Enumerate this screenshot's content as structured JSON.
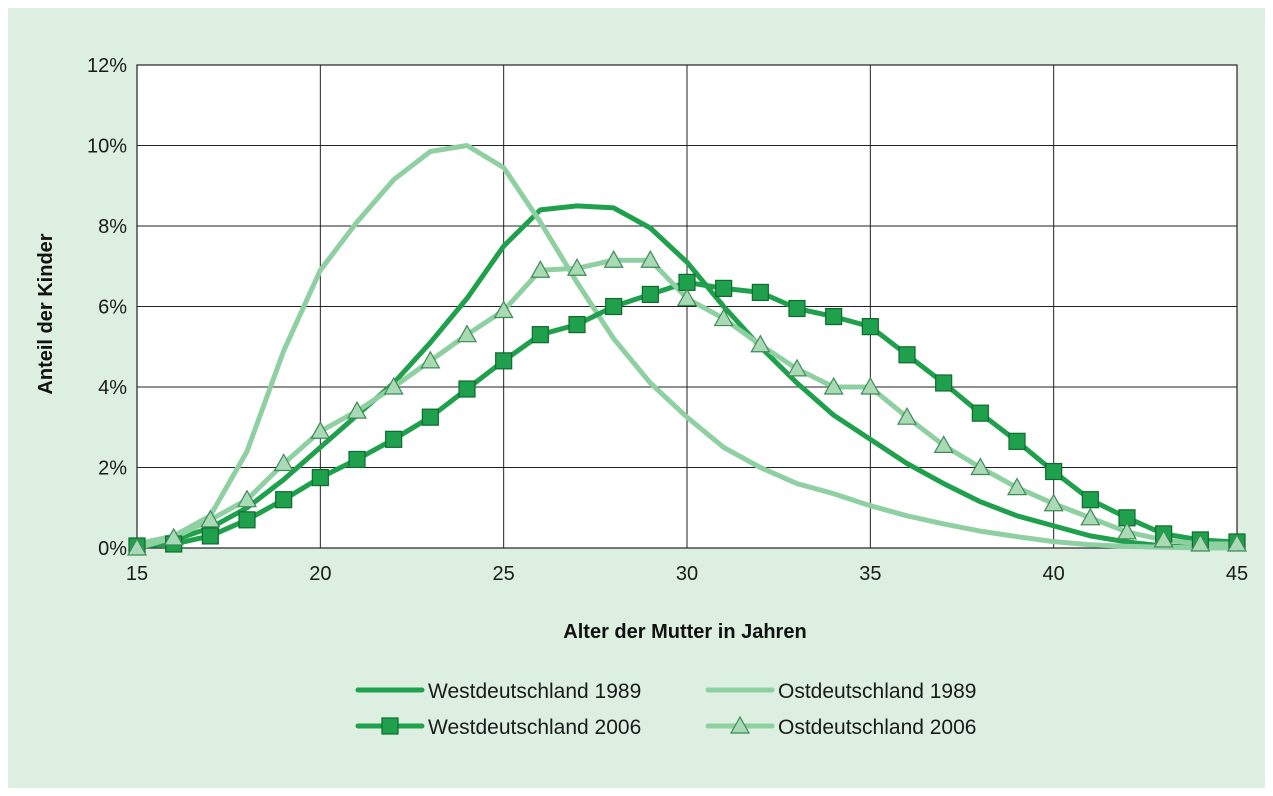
{
  "chart_data": {
    "type": "line",
    "title": "",
    "xlabel": "Alter der Mutter in Jahren",
    "ylabel": "Anteil der Kinder",
    "xlim": [
      15,
      45
    ],
    "ylim": [
      0,
      12
    ],
    "x_ticks": [
      "15",
      "20",
      "25",
      "30",
      "35",
      "40",
      "45"
    ],
    "y_ticks": [
      "0%",
      "2%",
      "4%",
      "6%",
      "8%",
      "10%",
      "12%"
    ],
    "grid": true,
    "legend_position": "bottom",
    "colors": {
      "west": "#1fa04c",
      "ost": "#8fd0a2",
      "marker_fill_tri": "#a9d9b5"
    },
    "series": [
      {
        "name": "Westdeutschland 1989",
        "color": "#1fa04c",
        "marker": "none",
        "x": [
          15,
          16,
          17,
          18,
          19,
          20,
          21,
          22,
          23,
          24,
          25,
          26,
          27,
          28,
          29,
          30,
          31,
          32,
          33,
          34,
          35,
          36,
          37,
          38,
          39,
          40,
          41,
          42,
          43,
          44,
          45
        ],
        "y": [
          0.1,
          0.2,
          0.5,
          1.0,
          1.7,
          2.5,
          3.3,
          4.1,
          5.1,
          6.2,
          7.5,
          8.4,
          8.5,
          8.45,
          7.95,
          7.1,
          6.0,
          5.0,
          4.1,
          3.3,
          2.7,
          2.1,
          1.6,
          1.15,
          0.8,
          0.55,
          0.3,
          0.15,
          0.05,
          0.02,
          0.0
        ]
      },
      {
        "name": "Ostdeutschland 1989",
        "color": "#8fd0a2",
        "marker": "none",
        "x": [
          15,
          16,
          17,
          18,
          19,
          20,
          21,
          22,
          23,
          24,
          25,
          26,
          27,
          28,
          29,
          30,
          31,
          32,
          33,
          34,
          35,
          36,
          37,
          38,
          39,
          40,
          41,
          42,
          43,
          44,
          45
        ],
        "y": [
          0.1,
          0.3,
          0.8,
          2.4,
          4.9,
          6.9,
          8.1,
          9.15,
          9.85,
          10.0,
          9.45,
          8.1,
          6.6,
          5.2,
          4.1,
          3.25,
          2.5,
          2.0,
          1.6,
          1.35,
          1.05,
          0.8,
          0.6,
          0.42,
          0.28,
          0.16,
          0.08,
          0.04,
          0.02,
          0.0,
          0.0
        ]
      },
      {
        "name": "Westdeutschland 2006",
        "color": "#1fa04c",
        "marker": "square",
        "x": [
          15,
          16,
          17,
          18,
          19,
          20,
          21,
          22,
          23,
          24,
          25,
          26,
          27,
          28,
          29,
          30,
          31,
          32,
          33,
          34,
          35,
          36,
          37,
          38,
          39,
          40,
          41,
          42,
          43,
          44,
          45
        ],
        "y": [
          0.05,
          0.1,
          0.3,
          0.7,
          1.2,
          1.75,
          2.2,
          2.7,
          3.25,
          3.95,
          4.65,
          5.3,
          5.55,
          6.0,
          6.3,
          6.6,
          6.45,
          6.35,
          5.95,
          5.75,
          5.5,
          4.8,
          4.1,
          3.35,
          2.65,
          1.9,
          1.2,
          0.75,
          0.35,
          0.2,
          0.15
        ]
      },
      {
        "name": "Ostdeutschland 2006",
        "color": "#8fd0a2",
        "marker": "triangle",
        "x": [
          15,
          16,
          17,
          18,
          19,
          20,
          21,
          22,
          23,
          24,
          25,
          26,
          27,
          28,
          29,
          30,
          31,
          32,
          33,
          34,
          35,
          36,
          37,
          38,
          39,
          40,
          41,
          42,
          43,
          44,
          45
        ],
        "y": [
          0.0,
          0.25,
          0.7,
          1.2,
          2.1,
          2.9,
          3.4,
          4.0,
          4.65,
          5.3,
          5.9,
          6.9,
          6.95,
          7.15,
          7.15,
          6.2,
          5.7,
          5.05,
          4.45,
          4.0,
          4.0,
          3.25,
          2.55,
          2.0,
          1.5,
          1.1,
          0.75,
          0.4,
          0.2,
          0.1,
          0.1
        ]
      }
    ]
  }
}
